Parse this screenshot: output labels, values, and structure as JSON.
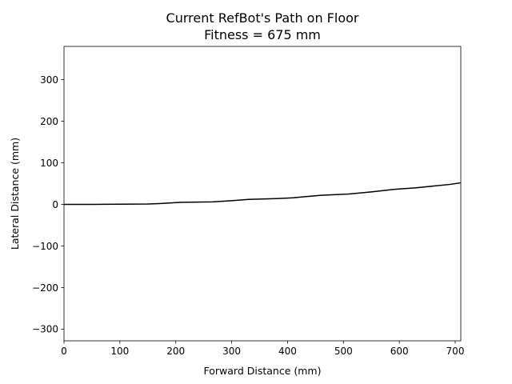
{
  "chart_data": {
    "type": "line",
    "title": "Current RefBot's Path on Floor",
    "subtitle": "Fitness = 675 mm",
    "xlabel": "Forward Distance (mm)",
    "ylabel": "Lateral Distance (mm)",
    "xlim": [
      0,
      710
    ],
    "ylim": [
      -328,
      380
    ],
    "xticks": [
      0,
      100,
      200,
      300,
      400,
      500,
      600,
      700
    ],
    "yticks": [
      -300,
      -200,
      -100,
      0,
      100,
      200,
      300
    ],
    "xtick_labels": [
      "0",
      "100",
      "200",
      "300",
      "400",
      "500",
      "600",
      "700"
    ],
    "ytick_labels": [
      "−300",
      "−200",
      "−100",
      "0",
      "100",
      "200",
      "300"
    ],
    "grid": false,
    "line_color": "#000000",
    "series": [
      {
        "x": [
          0,
          50,
          100,
          150,
          170,
          210,
          265,
          300,
          330,
          380,
          410,
          460,
          510,
          550,
          590,
          630,
          660,
          690,
          710
        ],
        "y": [
          0,
          0,
          0.5,
          1,
          2,
          5,
          6,
          9,
          12,
          14,
          16,
          22,
          25,
          30,
          36,
          40,
          44,
          48,
          52
        ]
      }
    ]
  }
}
